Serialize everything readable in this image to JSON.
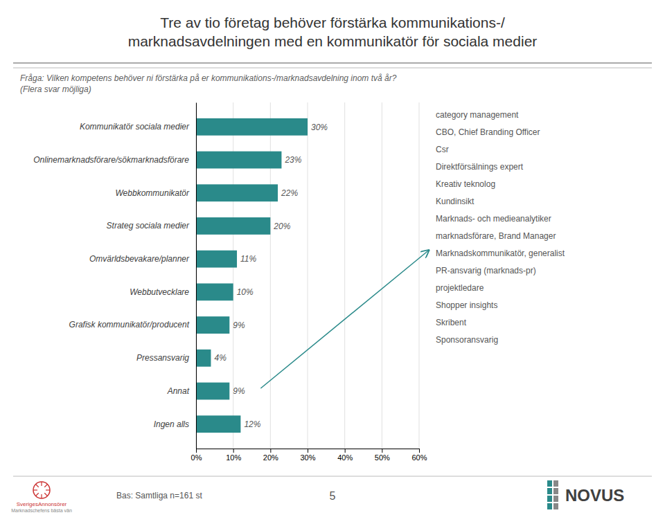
{
  "chart_data": {
    "type": "bar",
    "orientation": "horizontal",
    "title": [
      "Tre av tio företag behöver förstärka kommunikations-/",
      "marknadsavdelningen med en kommunikatör för sociala medier"
    ],
    "subtitle": [
      "Fråga: Vilken kompetens behöver ni förstärka på er kommunikations-/marknadsavdelning inom två år?",
      "(Flera svar möjliga)"
    ],
    "categories": [
      "Kommunikatör sociala medier",
      "Onlinemarknadsförare/sökmarknadsförare",
      "Webbkommunikatör",
      "Strateg sociala medier",
      "Omvärldsbevakare/planner",
      "Webbutvecklare",
      "Grafisk kommunikatör/producent",
      "Pressansvarig",
      "Annat",
      "Ingen alls"
    ],
    "values": [
      0.3,
      0.23,
      0.22,
      0.2,
      0.11,
      0.1,
      0.09,
      0.04,
      0.09,
      0.12
    ],
    "value_labels": [
      "30%",
      "23%",
      "22%",
      "20%",
      "11%",
      "10%",
      "9%",
      "4%",
      "9%",
      "12%"
    ],
    "data_labels": true,
    "color": "#2a8a8a",
    "xlim": [
      0,
      0.6
    ],
    "xticks": [
      {
        "value": 0,
        "label": "0%"
      },
      {
        "value": 0.1,
        "label": "10%"
      },
      {
        "value": 0.2,
        "label": "20%"
      },
      {
        "value": 0.3,
        "label": "30%"
      },
      {
        "value": 0.4,
        "label": "40%"
      },
      {
        "value": 0.5,
        "label": "50%"
      },
      {
        "value": 0.6,
        "label": "60%"
      }
    ],
    "grid": true,
    "annotations": [
      "category management",
      "CBO, Chief Branding Officer",
      "Csr",
      "Direktförsälnings expert",
      "Kreativ teknolog",
      "Kundinsikt",
      "Marknads- och medieanalytiker",
      "marknadsförare, Brand Manager",
      "Marknadskommunikatör, generalist",
      "PR-ansvarig (marknads-pr)",
      "projektledare",
      "Shopper insights",
      "Skribent",
      "Sponsoransvarig"
    ],
    "source": "Bas: Samtliga n=161 st",
    "page": "5",
    "logos": [
      "SverigesAnnonsörer",
      "Marknadschefens bästa vän",
      "NOVUS"
    ]
  }
}
